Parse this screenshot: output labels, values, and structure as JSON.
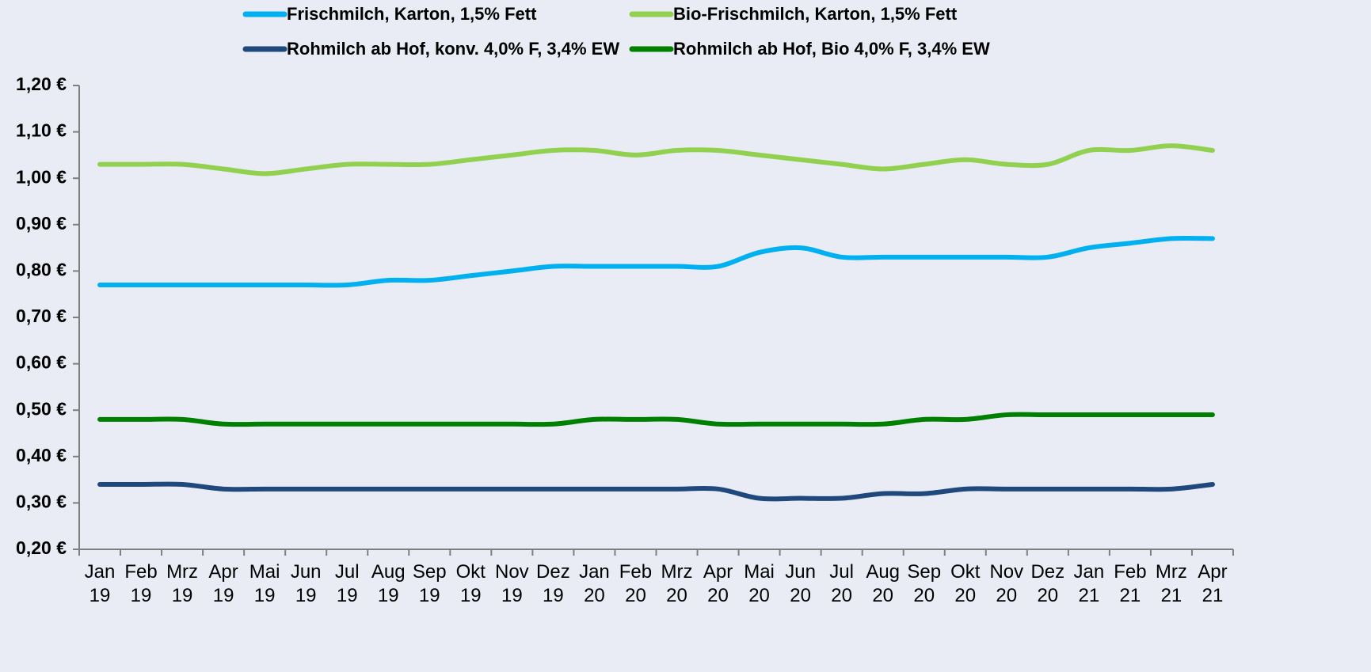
{
  "chart_data": {
    "type": "line",
    "categories": [
      "Jan 19",
      "Feb 19",
      "Mrz 19",
      "Apr 19",
      "Mai 19",
      "Jun 19",
      "Jul 19",
      "Aug 19",
      "Sep 19",
      "Okt 19",
      "Nov 19",
      "Dez 19",
      "Jan 20",
      "Feb 20",
      "Mrz 20",
      "Apr 20",
      "Mai 20",
      "Jun 20",
      "Jul 20",
      "Aug 20",
      "Sep 20",
      "Okt 20",
      "Nov 20",
      "Dez 20",
      "Jan 21",
      "Feb 21",
      "Mrz 21",
      "Apr 21"
    ],
    "series": [
      {
        "name": "Frischmilch, Karton, 1,5% Fett",
        "color": "#00b0f0",
        "values": [
          0.77,
          0.77,
          0.77,
          0.77,
          0.77,
          0.77,
          0.77,
          0.78,
          0.78,
          0.79,
          0.8,
          0.81,
          0.81,
          0.81,
          0.81,
          0.81,
          0.84,
          0.85,
          0.83,
          0.83,
          0.83,
          0.83,
          0.83,
          0.83,
          0.85,
          0.86,
          0.87,
          0.87
        ]
      },
      {
        "name": "Bio-Frischmilch, Karton, 1,5% Fett",
        "color": "#92d050",
        "values": [
          1.03,
          1.03,
          1.03,
          1.02,
          1.01,
          1.02,
          1.03,
          1.03,
          1.03,
          1.04,
          1.05,
          1.06,
          1.06,
          1.05,
          1.06,
          1.06,
          1.05,
          1.04,
          1.03,
          1.02,
          1.03,
          1.04,
          1.03,
          1.03,
          1.06,
          1.06,
          1.07,
          1.06
        ]
      },
      {
        "name": "Rohmilch ab Hof, konv. 4,0% F, 3,4% EW",
        "color": "#1f497d",
        "values": [
          0.34,
          0.34,
          0.34,
          0.33,
          0.33,
          0.33,
          0.33,
          0.33,
          0.33,
          0.33,
          0.33,
          0.33,
          0.33,
          0.33,
          0.33,
          0.33,
          0.31,
          0.31,
          0.31,
          0.32,
          0.32,
          0.33,
          0.33,
          0.33,
          0.33,
          0.33,
          0.33,
          0.34
        ]
      },
      {
        "name": "Rohmilch ab Hof, Bio 4,0% F, 3,4% EW",
        "color": "#008000",
        "values": [
          0.48,
          0.48,
          0.48,
          0.47,
          0.47,
          0.47,
          0.47,
          0.47,
          0.47,
          0.47,
          0.47,
          0.47,
          0.48,
          0.48,
          0.48,
          0.47,
          0.47,
          0.47,
          0.47,
          0.47,
          0.48,
          0.48,
          0.49,
          0.49,
          0.49,
          0.49,
          0.49,
          0.49
        ]
      }
    ],
    "ylim": [
      0.2,
      1.2
    ],
    "yticks": [
      {
        "value": 0.2,
        "label": "0,20 €"
      },
      {
        "value": 0.3,
        "label": "0,30 €"
      },
      {
        "value": 0.4,
        "label": "0,40 €"
      },
      {
        "value": 0.5,
        "label": "0,50 €"
      },
      {
        "value": 0.6,
        "label": "0,60 €"
      },
      {
        "value": 0.7,
        "label": "0,70 €"
      },
      {
        "value": 0.8,
        "label": "0,80 €"
      },
      {
        "value": 0.9,
        "label": "0,90 €"
      },
      {
        "value": 1.0,
        "label": "1,00 €"
      },
      {
        "value": 1.1,
        "label": "1,10 €"
      },
      {
        "value": 1.2,
        "label": "1,20 €"
      }
    ],
    "grid": false,
    "legend": "top"
  }
}
